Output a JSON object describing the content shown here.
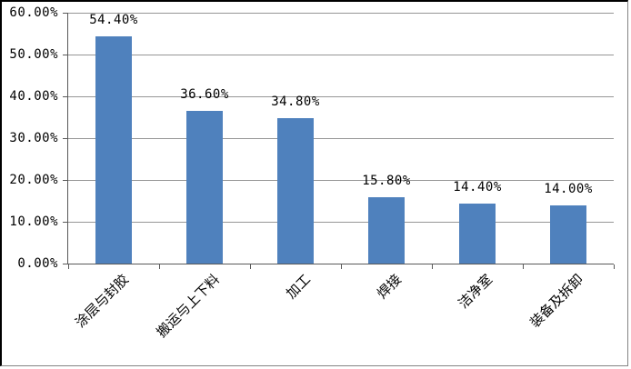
{
  "chart_data": {
    "type": "bar",
    "title": "",
    "categories": [
      "涂层与封胶",
      "搬运与上下料",
      "加工",
      "焊接",
      "洁净室",
      "装备及拆卸"
    ],
    "values": [
      54.4,
      36.6,
      34.8,
      15.8,
      14.4,
      14.0
    ],
    "data_labels": [
      "54.40%",
      "36.60%",
      "34.80%",
      "15.80%",
      "14.40%",
      "14.00%"
    ],
    "y_tick_labels": [
      "60.00%",
      "50.00%",
      "40.00%",
      "30.00%",
      "20.00%",
      "10.00%",
      "0.00%"
    ],
    "ylim": [
      0,
      60
    ],
    "y_step": 10,
    "xlabel": "",
    "ylabel": "",
    "grid": true,
    "legend": "none",
    "bar_color": "#4F81BD",
    "gridline_color": "#969696",
    "axis_color": "#595959",
    "frame_border_dark": "#000000",
    "frame_border_light": "#848484",
    "label_color": "#000000",
    "background_color": "#FFFFFF"
  }
}
